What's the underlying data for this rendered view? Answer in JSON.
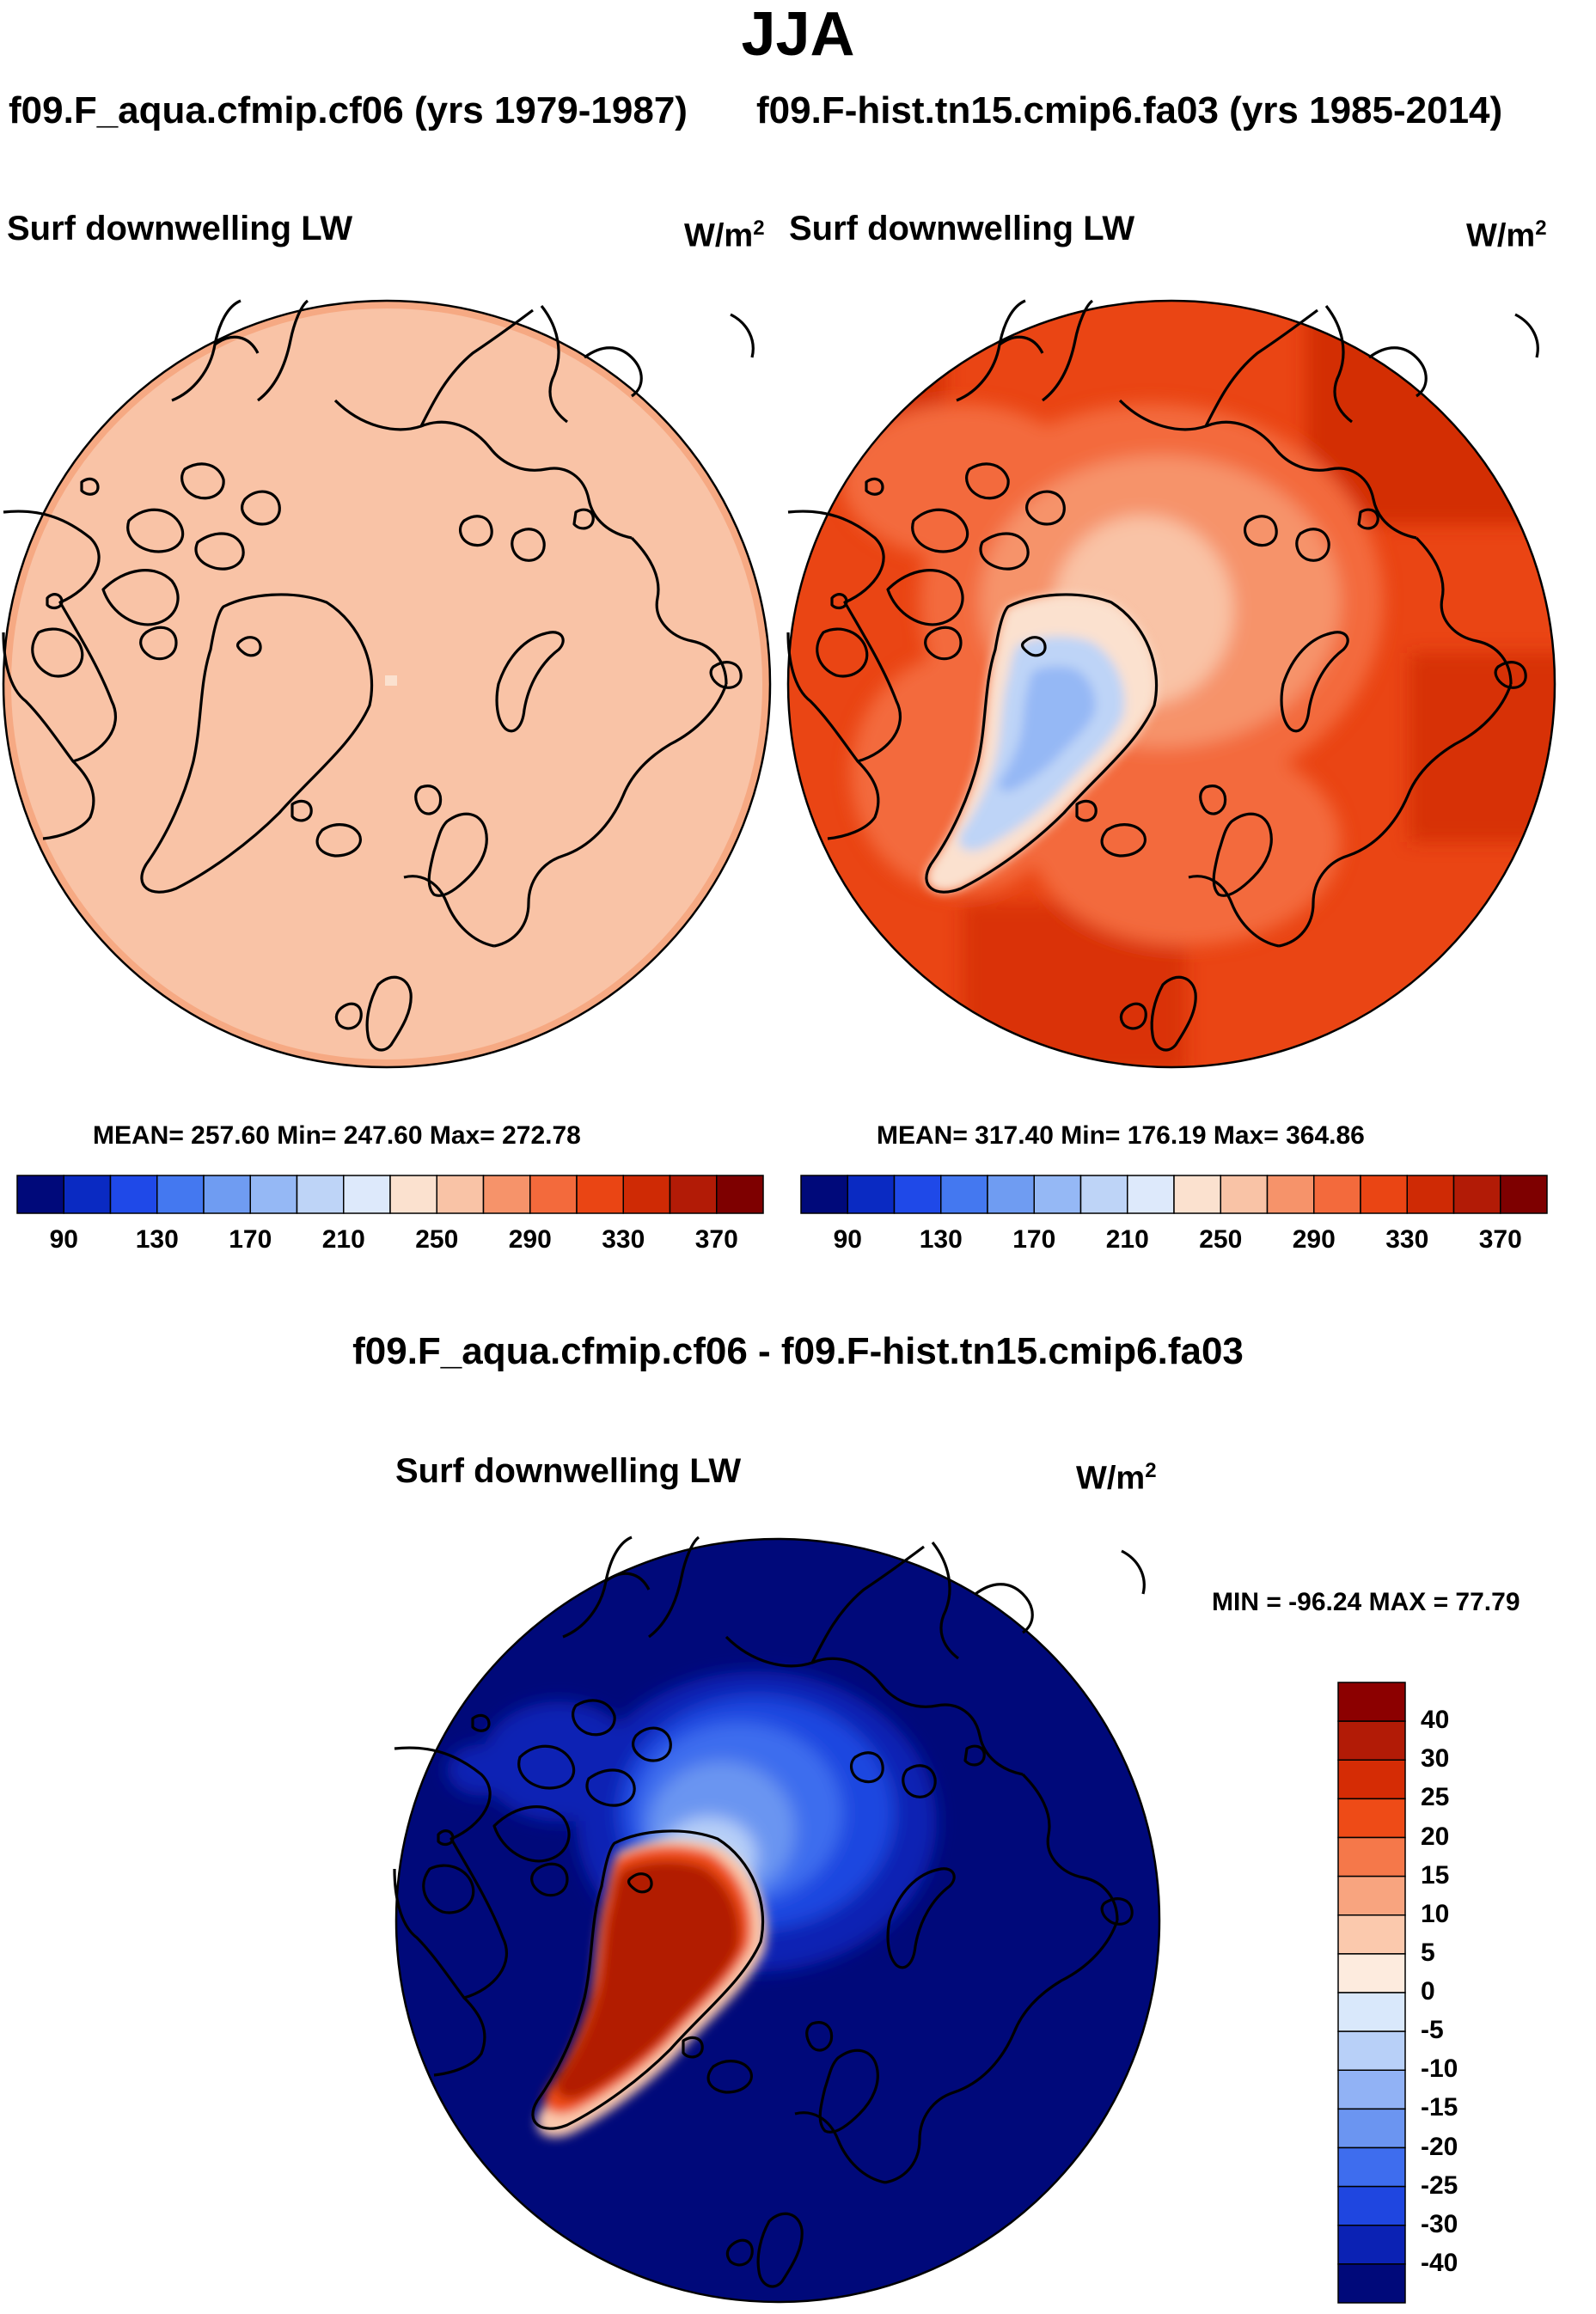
{
  "figure": {
    "season": "JJA",
    "variable": "Surf downwelling LW",
    "units_base": "W/m",
    "units_exp": "2"
  },
  "panels": [
    {
      "case": "f09.F_aqua.cfmip.cf06 (yrs 1979-1987)",
      "stats": "MEAN= 257.60  Min= 247.60  Max= 272.78",
      "field_summary": "uniform ~260 W/m2 everywhere (aquaplanet)"
    },
    {
      "case": "f09.F-hist.tn15.cmip6.fa03 (yrs 1985-2014)",
      "stats": "MEAN= 317.40  Min= 176.19  Max= 364.86",
      "field_summary": "~330-370 at mid-latitudes, ~270-290 over Arctic Ocean, minimum ~180-200 over Greenland"
    }
  ],
  "difference": {
    "title": "f09.F_aqua.cfmip.cf06 - f09.F-hist.tn15.cmip6.fa03",
    "minmax": "MIN = -96.24 MAX =  77.79",
    "field_summary": "< -40 over most of the domain, -10 to -30 over Arctic Ocean, > 40 over Greenland"
  },
  "chart_data": [
    {
      "type": "heatmap",
      "name": "main-colorbar",
      "levels": [
        90,
        110,
        130,
        150,
        170,
        190,
        210,
        230,
        250,
        270,
        290,
        310,
        330,
        350,
        370
      ],
      "tick_labels": [
        "90",
        "130",
        "170",
        "210",
        "250",
        "290",
        "330",
        "370"
      ],
      "colors": [
        "#00097a",
        "#0a2ac2",
        "#1f49e8",
        "#4478f0",
        "#6f9cf2",
        "#95b8f5",
        "#bed4f7",
        "#dde9fb",
        "#fbe1cf",
        "#f9c3a6",
        "#f6936a",
        "#f36a3c",
        "#ea4514",
        "#cf2a05",
        "#b21b06",
        "#7e0000"
      ]
    },
    {
      "type": "heatmap",
      "name": "difference-colorbar",
      "levels": [
        40,
        30,
        25,
        20,
        15,
        10,
        5,
        0,
        -5,
        -10,
        -15,
        -20,
        -25,
        -30,
        -40
      ],
      "tick_labels": [
        "40",
        "30",
        "25",
        "20",
        "15",
        "10",
        "5",
        "0",
        "-5",
        "-10",
        "-15",
        "-20",
        "-25",
        "-30",
        "-40"
      ],
      "colors": [
        "#8c0000",
        "#b21b06",
        "#d52c05",
        "#ee4b17",
        "#f5784a",
        "#f8a47f",
        "#fbc9ad",
        "#fdebde",
        "#d9e8fb",
        "#b8d0f8",
        "#91b2f5",
        "#6b95f1",
        "#3e6dee",
        "#1f46e0",
        "#0b22b4",
        "#00097a"
      ]
    }
  ]
}
